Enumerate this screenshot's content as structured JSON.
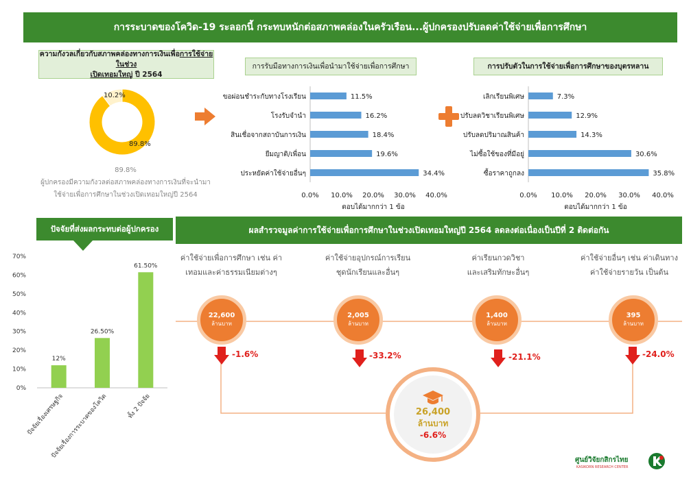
{
  "banner": {
    "title": "การระบาดของโควิด-19 ระลอกนี้ กระทบหนักต่อสภาพคล่องในครัวเรือน...ผู้ปกครองปรับลดค่าใช้จ่ายเพื่อการศึกษา"
  },
  "donut_panel": {
    "title_line1_plain": "ความกังวลเกี่ยวกับสภาพคล่องทางการเงินเพื่อ",
    "title_line1_underlined": "การใช้จ่ายในช่วง",
    "title_line2_underlined": "เปิดเทอมใหญ่",
    "title_line2_plain": " ปี 2564",
    "caption_value": "89.8%",
    "caption_text": "ผู้ปกครองมีความกังวลต่อสภาพคล่องทางการเงินที่จะนำมาใช้จ่ายเพื่อการศึกษาในช่วงเปิดเทอมใหญ่ปี 2564"
  },
  "funding_panel": {
    "title": "การรับมือทางการเงินเพื่อนำมาใช้จ่ายเพื่อการศึกษา",
    "note": "ตอบได้มากกว่า 1 ข้อ"
  },
  "adjust_panel": {
    "title": "การปรับตัวในการใช้จ่ายเพื่อการศึกษาของบุตรหลาน",
    "note": "ตอบได้มากกว่า 1 ข้อ"
  },
  "factors_panel": {
    "title": "ปัจจัยที่ส่งผลกระทบต่อผู้ปกครอง"
  },
  "survey": {
    "title": "ผลสำรวจมูลค่าการใช้จ่ายเพื่อการศึกษาในช่วงเปิดเทอมใหญ่ปี 2564 ลดลงต่อเนื่องเป็นปีที่ 2 ติดต่อกัน",
    "items": [
      {
        "label": "ค่าใช้จ่ายเพื่อการศึกษา เช่น ค่าเทอมและค่าธรรมเนียมต่างๆ",
        "value": "22,600",
        "unit": "ล้านบาท",
        "change": "-1.6%"
      },
      {
        "label": "ค่าใช้จ่ายอุปกรณ์การเรียน ชุดนักเรียนและอื่นๆ",
        "value": "2,005",
        "unit": "ล้านบาท",
        "change": "-33.2%"
      },
      {
        "label": "ค่าเรียนกวดวิชา และเสริมทักษะอื่นๆ",
        "value": "1,400",
        "unit": "ล้านบาท",
        "change": "-21.1%"
      },
      {
        "label": "ค่าใช้จ่ายอื่นๆ เช่น ค่าเดินทาง ค่าใช้จ่ายรายวัน เป็นต้น",
        "value": "395",
        "unit": "ล้านบาท",
        "change": "-24.0%"
      }
    ],
    "total": {
      "value": "26,400",
      "unit": "ล้านบาท",
      "change": "-6.6%"
    }
  },
  "logo": {
    "name": "ศูนย์วิจัยกสิกรไทย",
    "sub": "KASIKORN RESEARCH CENTER"
  },
  "colors": {
    "green": "#3c8a2e",
    "light_green": "#e2efd9",
    "bar_blue": "#5b9bd5",
    "bar_green": "#92d050",
    "donut_gold": "#ffc000",
    "orange": "#ed7d31",
    "red": "#e0201c"
  },
  "chart_data": [
    {
      "type": "pie",
      "categories": [
        "",
        ""
      ],
      "values": [
        89.8,
        10.2
      ],
      "labels": [
        "89.8%",
        "10.2%"
      ]
    },
    {
      "type": "bar",
      "orientation": "horizontal",
      "title": "การรับมือทางการเงินเพื่อนำมาใช้จ่ายเพื่อการศึกษา",
      "categories": [
        "ขอผ่อนชำระกับทางโรงเรียน",
        "โรงรับจำนำ",
        "สินเชื่อจากสถาบันการเงิน",
        "ยืมญาติ/เพื่อน",
        "ประหยัดค่าใช้จ่ายอื่นๆ"
      ],
      "values": [
        11.5,
        16.2,
        18.4,
        19.6,
        34.4
      ],
      "labels": [
        "11.5%",
        "16.2%",
        "18.4%",
        "19.6%",
        "34.4%"
      ],
      "xlim": [
        0,
        40
      ],
      "ticks": [
        "0.0%",
        "10.0%",
        "20.0%",
        "30.0%",
        "40.0%"
      ],
      "xlabel": "ตอบได้มากกว่า 1 ข้อ"
    },
    {
      "type": "bar",
      "orientation": "horizontal",
      "title": "การปรับตัวในการใช้จ่ายเพื่อการศึกษาของบุตรหลาน",
      "categories": [
        "เลิกเรียนพิเศษ",
        "ปรับลดวิชาเรียนพิเศษ",
        "ปรับลดปริมาณสินค้า",
        "ไม่ซื้อใช้ของที่มีอยู่",
        "ซื้อราคาถูกลง"
      ],
      "values": [
        7.3,
        12.9,
        14.3,
        30.6,
        35.8
      ],
      "labels": [
        "7.3%",
        "12.9%",
        "14.3%",
        "30.6%",
        "35.8%"
      ],
      "xlim": [
        0,
        40
      ],
      "ticks": [
        "0.0%",
        "10.0%",
        "20.0%",
        "30.0%",
        "40.0%"
      ],
      "xlabel": "ตอบได้มากกว่า 1 ข้อ"
    },
    {
      "type": "bar",
      "title": "ปัจจัยที่ส่งผลกระทบต่อผู้ปกครอง",
      "categories": [
        "ปัจจัยเรื่องเศรษฐกิจ",
        "ปัจจัยเรื่องการระบาดของโควิด",
        "ทั้ง 2 ปัจจัย"
      ],
      "values": [
        12,
        26.5,
        61.5
      ],
      "labels": [
        "12%",
        "26.50%",
        "61.50%"
      ],
      "ylim": [
        0,
        70
      ],
      "ticks": [
        "0%",
        "10%",
        "20%",
        "30%",
        "40%",
        "50%",
        "60%",
        "70%"
      ]
    }
  ]
}
